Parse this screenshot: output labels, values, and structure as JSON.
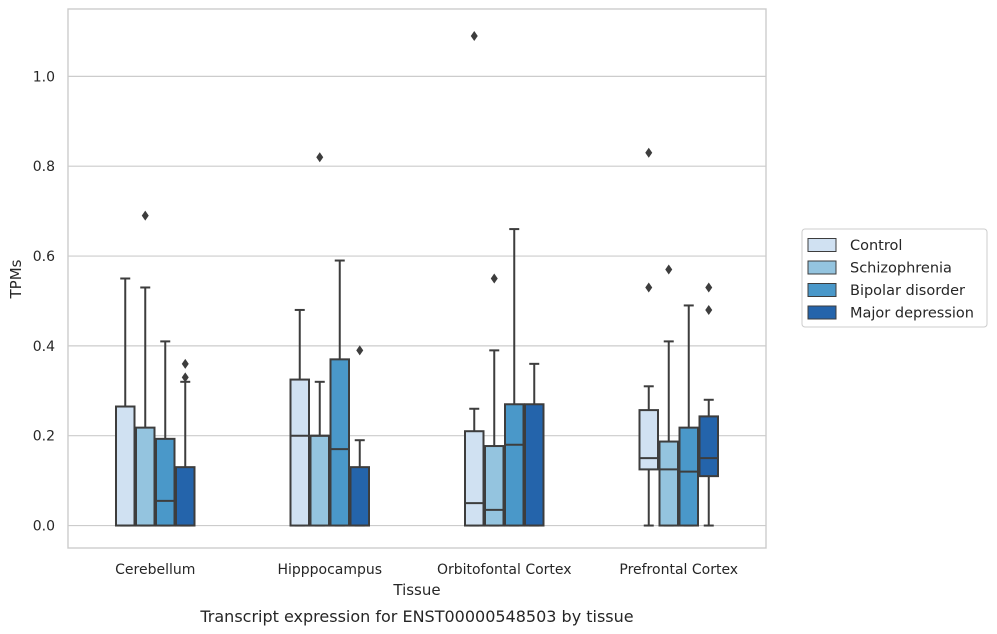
{
  "caption": "Transcript expression for ENST00000548503 by tissue",
  "chart_data": {
    "type": "boxplot",
    "xlabel": "Tissue",
    "ylabel": "TPMs",
    "ylim": [
      -0.05,
      1.15
    ],
    "yticks": [
      0.0,
      0.2,
      0.4,
      0.6,
      0.8,
      1.0
    ],
    "ytick_labels": [
      "0.0",
      "0.2",
      "0.4",
      "0.6",
      "0.8",
      "1.0"
    ],
    "grid": "horizontal",
    "legend_placement": "right",
    "categories": [
      "Cerebellum",
      "Hipppocampus",
      "Orbitofontal Cortex",
      "Prefrontal Cortex"
    ],
    "series": [
      {
        "name": "Control",
        "color": "#d0e1f2",
        "boxes": [
          {
            "whislo": 0.0,
            "q1": 0.0,
            "med": 0.0,
            "q3": 0.265,
            "whishi": 0.55,
            "fliers": []
          },
          {
            "whislo": 0.0,
            "q1": 0.0,
            "med": 0.2,
            "q3": 0.325,
            "whishi": 0.48,
            "fliers": []
          },
          {
            "whislo": 0.0,
            "q1": 0.0,
            "med": 0.05,
            "q3": 0.21,
            "whishi": 0.26,
            "fliers": [
              1.09
            ]
          },
          {
            "whislo": 0.0,
            "q1": 0.125,
            "med": 0.15,
            "q3": 0.257,
            "whishi": 0.31,
            "fliers": [
              0.53,
              0.83
            ]
          }
        ]
      },
      {
        "name": "Schizophrenia",
        "color": "#94c4df",
        "boxes": [
          {
            "whislo": 0.0,
            "q1": 0.0,
            "med": 0.0,
            "q3": 0.218,
            "whishi": 0.53,
            "fliers": [
              0.69
            ]
          },
          {
            "whislo": 0.0,
            "q1": 0.0,
            "med": 0.2,
            "q3": 0.2,
            "whishi": 0.32,
            "fliers": [
              0.82
            ]
          },
          {
            "whislo": 0.0,
            "q1": 0.0,
            "med": 0.035,
            "q3": 0.177,
            "whishi": 0.39,
            "fliers": [
              0.55
            ]
          },
          {
            "whislo": 0.0,
            "q1": 0.0,
            "med": 0.125,
            "q3": 0.187,
            "whishi": 0.41,
            "fliers": [
              0.57
            ]
          }
        ]
      },
      {
        "name": "Bipolar disorder",
        "color": "#4a98c9",
        "boxes": [
          {
            "whislo": 0.0,
            "q1": 0.0,
            "med": 0.055,
            "q3": 0.193,
            "whishi": 0.41,
            "fliers": []
          },
          {
            "whislo": 0.0,
            "q1": 0.0,
            "med": 0.17,
            "q3": 0.37,
            "whishi": 0.59,
            "fliers": []
          },
          {
            "whislo": 0.0,
            "q1": 0.0,
            "med": 0.18,
            "q3": 0.27,
            "whishi": 0.66,
            "fliers": []
          },
          {
            "whislo": 0.0,
            "q1": 0.0,
            "med": 0.12,
            "q3": 0.218,
            "whishi": 0.49,
            "fliers": []
          }
        ]
      },
      {
        "name": "Major depression",
        "color": "#2464ab",
        "boxes": [
          {
            "whislo": 0.0,
            "q1": 0.0,
            "med": 0.0,
            "q3": 0.13,
            "whishi": 0.32,
            "fliers": [
              0.33,
              0.36
            ]
          },
          {
            "whislo": 0.0,
            "q1": 0.0,
            "med": 0.0,
            "q3": 0.13,
            "whishi": 0.19,
            "fliers": [
              0.39
            ]
          },
          {
            "whislo": 0.0,
            "q1": 0.0,
            "med": 0.0,
            "q3": 0.27,
            "whishi": 0.36,
            "fliers": []
          },
          {
            "whislo": 0.0,
            "q1": 0.11,
            "med": 0.15,
            "q3": 0.243,
            "whishi": 0.28,
            "fliers": [
              0.48,
              0.53
            ]
          }
        ]
      }
    ]
  }
}
